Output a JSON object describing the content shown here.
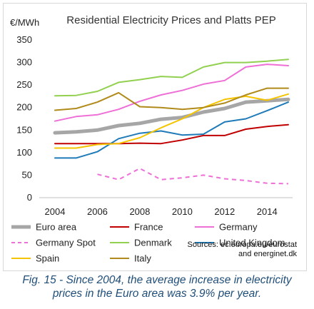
{
  "chart_data": {
    "type": "line",
    "title": "Residential Electricity Prices and Platts PEP",
    "ylabel": "€/MWh",
    "xlabel": "",
    "ylim": [
      0,
      350
    ],
    "yticks": [
      0,
      50,
      100,
      150,
      200,
      250,
      300,
      350
    ],
    "xlim": [
      2004,
      2015
    ],
    "xticks": [
      2004,
      2006,
      2008,
      2010,
      2012,
      2014
    ],
    "grid": "none",
    "legend_position": "bottom",
    "x": [
      2004,
      2005,
      2006,
      2007,
      2008,
      2009,
      2010,
      2011,
      2012,
      2013,
      2014,
      2015
    ],
    "series": [
      {
        "name": "Euro area",
        "color": "#a6a6a6",
        "width": 5,
        "dash": "",
        "values": [
          144,
          146,
          150,
          160,
          165,
          174,
          178,
          190,
          198,
          212,
          215,
          218
        ]
      },
      {
        "name": "France",
        "color": "#c00000",
        "width": 2,
        "dash": "",
        "values": [
          120,
          120,
          120,
          120,
          121,
          120,
          128,
          138,
          138,
          152,
          158,
          162
        ]
      },
      {
        "name": "Germany",
        "color": "#ee6fd6",
        "width": 2,
        "dash": "",
        "values": [
          170,
          180,
          184,
          196,
          214,
          228,
          238,
          252,
          260,
          290,
          296,
          293
        ]
      },
      {
        "name": "Germany Spot",
        "color": "#ee6fd6",
        "width": 2,
        "dash": "6,5",
        "values": [
          null,
          null,
          52,
          40,
          65,
          40,
          44,
          50,
          42,
          38,
          32,
          31
        ]
      },
      {
        "name": "Denmark",
        "color": "#92d050",
        "width": 2,
        "dash": "",
        "values": [
          226,
          227,
          236,
          256,
          262,
          269,
          267,
          290,
          300,
          300,
          303,
          307
        ]
      },
      {
        "name": "United Kingdom",
        "color": "#1f7ab8",
        "width": 2,
        "dash": "",
        "values": [
          88,
          88,
          102,
          131,
          143,
          148,
          139,
          141,
          168,
          175,
          193,
          212
        ]
      },
      {
        "name": "Spain",
        "color": "#f5c400",
        "width": 2,
        "dash": "",
        "values": [
          110,
          110,
          118,
          120,
          133,
          155,
          175,
          200,
          218,
          225,
          216,
          230
        ]
      },
      {
        "name": "Italy",
        "color": "#b08a1a",
        "width": 2,
        "dash": "",
        "values": [
          194,
          198,
          212,
          233,
          202,
          200,
          196,
          200,
          210,
          228,
          243,
          243
        ]
      }
    ],
    "source_note": [
      "Sources: ec.europa.eu/eurostat",
      "and energinet.dk"
    ]
  },
  "caption": {
    "line1": "Fig. 15 - Since 2004, the average increase in electricity",
    "line2": "prices in the Euro area was 3.9% per year."
  }
}
